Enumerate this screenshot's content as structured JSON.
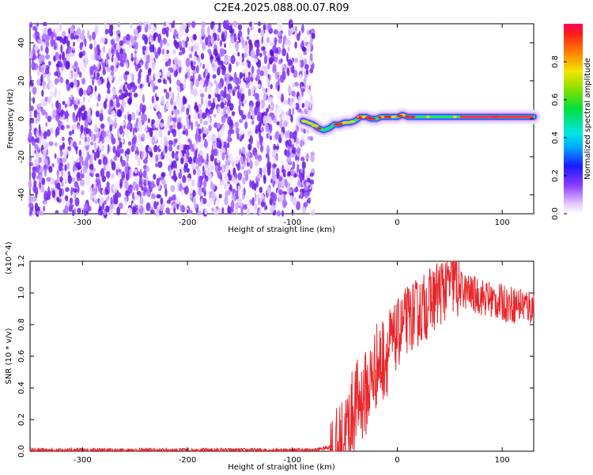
{
  "chart_data": [
    {
      "type": "heatmap",
      "title": "C2E4.2025.088.00.07.R09",
      "xlabel": "Height of straight line (km)",
      "ylabel": "Frequency (Hz)",
      "xlim": [
        -350,
        130
      ],
      "ylim": [
        -50,
        50
      ],
      "xticks": [
        -300,
        -200,
        -100,
        0,
        100
      ],
      "yticks": [
        -40,
        -20,
        0,
        20,
        40
      ],
      "noise_region_x": [
        -350,
        -80
      ],
      "signal_track": {
        "x": [
          -90,
          -85,
          -80,
          -75,
          -70,
          -65,
          -60,
          -55,
          -50,
          -45,
          -40,
          -35,
          -30,
          -25,
          -20,
          -15,
          -10,
          -5,
          0,
          5,
          10,
          20,
          40,
          60,
          80,
          100,
          130
        ],
        "y": [
          -1,
          -2,
          -3,
          -5,
          -6,
          -5,
          -3,
          -3,
          -2,
          -2,
          -1,
          1,
          1,
          0,
          0,
          1,
          1,
          1,
          1,
          2,
          1,
          1,
          1,
          1,
          1,
          1,
          1
        ]
      },
      "colorbar": {
        "label": "Normalized spectral amplitude",
        "ticks": [
          0.0,
          0.2,
          0.4,
          0.6,
          0.8
        ],
        "range": [
          0,
          1
        ]
      }
    },
    {
      "type": "line",
      "title": "",
      "xlabel": "Height of straight line (km)",
      "ylabel": "SNR (10 * v/v)",
      "multiplier": "(x10^4)",
      "xlim": [
        -350,
        130
      ],
      "ylim": [
        0,
        1.2
      ],
      "xticks": [
        -300,
        -200,
        -100,
        0,
        100
      ],
      "yticks": [
        0.0,
        0.2,
        0.4,
        0.6,
        0.8,
        1.0,
        1.2
      ],
      "series": [
        {
          "x": [
            -350,
            -300,
            -250,
            -200,
            -150,
            -100,
            -80,
            -70,
            -60,
            -55,
            -50,
            -45,
            -40,
            -35,
            -30,
            -25,
            -20,
            -15,
            -10,
            -5,
            0,
            10,
            20,
            30,
            40,
            50,
            55,
            60,
            70,
            80,
            90,
            100,
            110,
            120,
            130
          ],
          "y": [
            0.01,
            0.01,
            0.01,
            0.01,
            0.01,
            0.01,
            0.01,
            0.02,
            0.04,
            0.08,
            0.15,
            0.25,
            0.35,
            0.38,
            0.42,
            0.5,
            0.6,
            0.62,
            0.68,
            0.72,
            0.78,
            0.88,
            0.92,
            0.98,
            1.05,
            1.1,
            1.12,
            1.05,
            1.02,
            1.0,
            0.98,
            0.96,
            0.95,
            0.95,
            0.93
          ],
          "color": "#e8262b"
        }
      ]
    }
  ]
}
